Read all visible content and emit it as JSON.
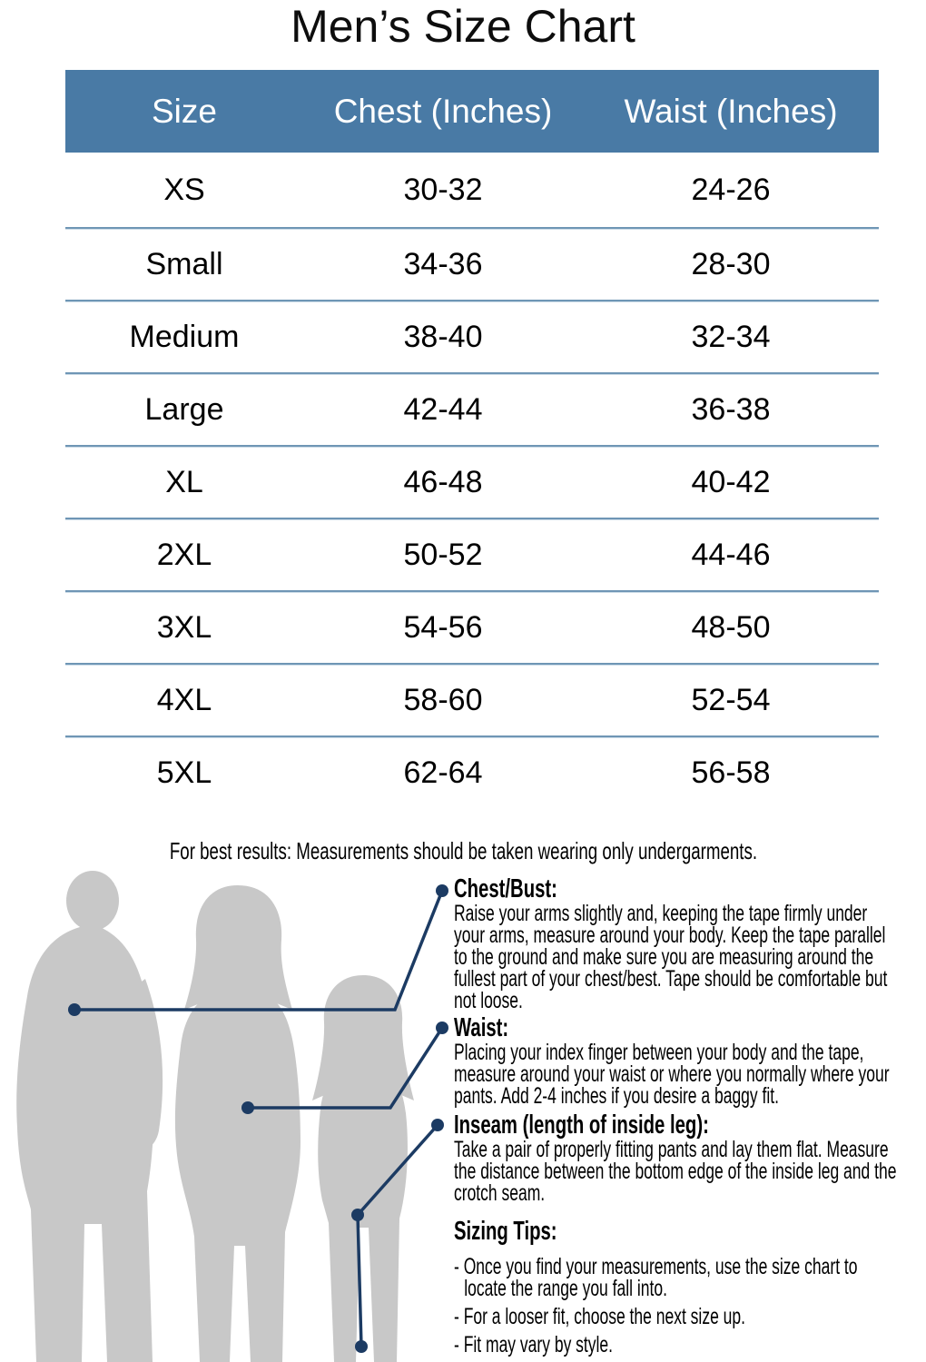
{
  "title": "Men’s Size Chart",
  "note": "For best results: Measurements should be taken wearing only undergarments.",
  "chart_data": {
    "type": "table",
    "title": "Men’s Size Chart",
    "columns": [
      "Size",
      "Chest (Inches)",
      "Waist (Inches)"
    ],
    "rows": [
      [
        "XS",
        "30-32",
        "24-26"
      ],
      [
        "Small",
        "34-36",
        "28-30"
      ],
      [
        "Medium",
        "38-40",
        "32-34"
      ],
      [
        "Large",
        "42-44",
        "36-38"
      ],
      [
        "XL",
        "46-48",
        "40-42"
      ],
      [
        "2XL",
        "50-52",
        "44-46"
      ],
      [
        "3XL",
        "54-56",
        "48-50"
      ],
      [
        "4XL",
        "58-60",
        "52-54"
      ],
      [
        "5XL",
        "62-64",
        "56-58"
      ]
    ]
  },
  "sections": [
    {
      "heading": "Chest/Bust:",
      "body": "Raise your arms slightly and, keeping the tape firmly under your arms, measure around your body. Keep the tape parallel to the ground and make sure you are measuring around the fullest part of your chest/best. Tape should be comfortable but not loose."
    },
    {
      "heading": "Waist:",
      "body": "Placing your index finger between your body and the tape, measure around your waist or where you normally where your pants. Add 2-4 inches if you desire a baggy fit."
    },
    {
      "heading": "Inseam (length of inside leg):",
      "body": "Take a pair of properly fitting pants and lay them flat. Measure the distance between the bottom edge of the inside leg and the crotch seam."
    },
    {
      "heading": "Sizing Tips:",
      "bullets": [
        "- Once you find your measurements, use the size chart to locate the range you fall into.",
        "- For a looser fit, choose the next size up.",
        "- Fit may vary by style."
      ]
    }
  ],
  "colors": {
    "header_bg": "#497aa5",
    "header_text": "#ffffff",
    "row_divider": "#6f96b5",
    "leader_line": "#1c3b63",
    "silhouette": "#c8c8c8",
    "text": "#000000"
  }
}
